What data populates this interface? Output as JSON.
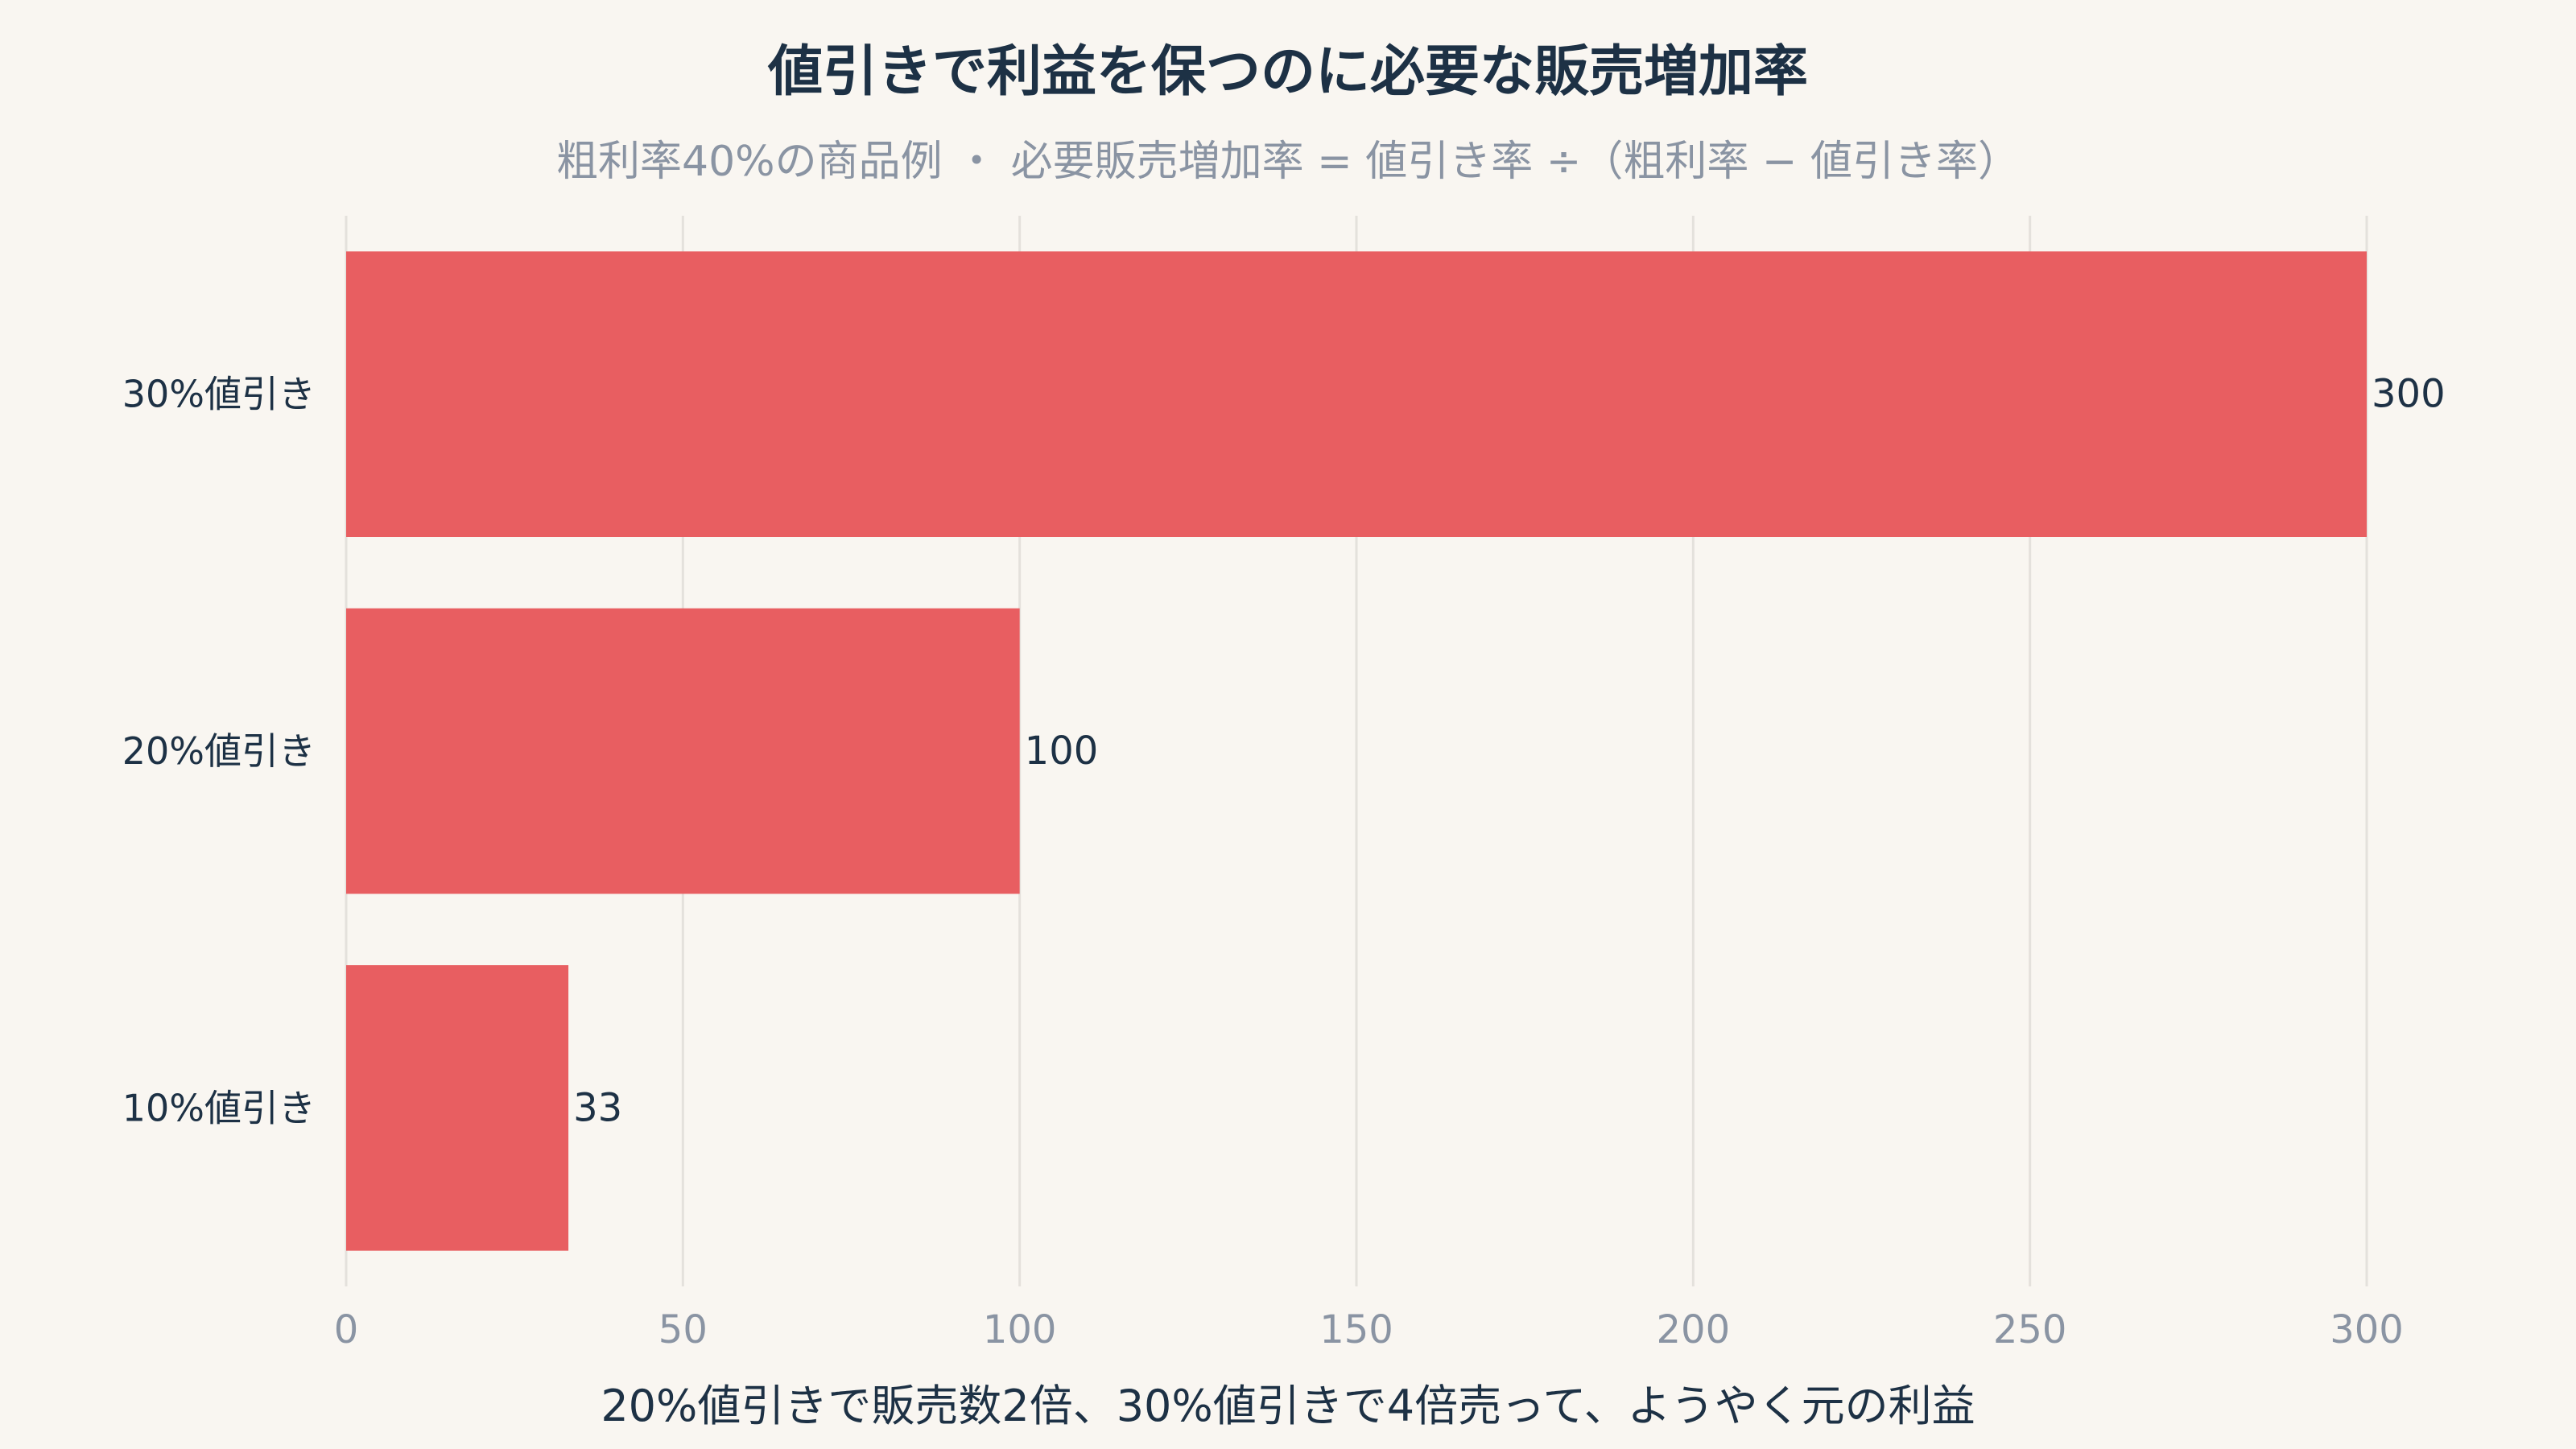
{
  "chart_data": {
    "type": "bar",
    "orientation": "horizontal",
    "title": "値引きで利益を保つのに必要な販売増加率",
    "subtitle": "粗利率40%の商品例 ・ 必要販売増加率 = 値引き率 ÷（粗利率 − 値引き率）",
    "xlabel": "20%値引きで販売数2倍、30%値引きで4倍売って、ようやく元の利益",
    "ylabel": "",
    "categories": [
      "30%値引き",
      "20%値引き",
      "10%値引き"
    ],
    "values": [
      300,
      100,
      33
    ],
    "value_labels": [
      "300",
      "100",
      "33"
    ],
    "xlim": [
      0,
      300
    ],
    "xticks": [
      0,
      50,
      100,
      150,
      200,
      250,
      300
    ],
    "grid": "vertical",
    "legend": "none",
    "colors": {
      "bar": "#e85e61",
      "background": "#f9f6f1",
      "title": "#1d3145",
      "subtitle": "#8a94a3"
    }
  }
}
